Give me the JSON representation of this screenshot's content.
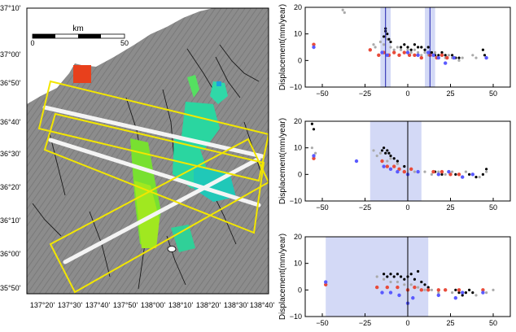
{
  "map": {
    "lat_labels": [
      "37°10'",
      "37°00'",
      "36°50'",
      "36°40'",
      "36°30'",
      "36°20'",
      "36°10'",
      "36°00'",
      "35°50'"
    ],
    "lon_labels": [
      "137°20'",
      "137°30'",
      "137°40'",
      "137°50'",
      "138°00'",
      "138°10'",
      "138°20'",
      "138°30'",
      "138°40'"
    ],
    "scale": {
      "unit": "km",
      "min": "0",
      "max": "50"
    },
    "colors": {
      "frame": "#f2e600",
      "terrain": "#8a8a8a",
      "profile": "#f4f4f4",
      "red_patch": "#e8401c"
    }
  },
  "chart_data": [
    {
      "type": "scatter",
      "title": "",
      "xlabel": "",
      "ylabel": "Displacement(mm/year)",
      "xlim": [
        -60,
        60
      ],
      "ylim": [
        -10,
        20
      ],
      "xticks": [
        -50,
        -25,
        0,
        25,
        50
      ],
      "yticks": [
        -10,
        0,
        10,
        20
      ],
      "x_tick_labels": [
        "−50",
        "−25",
        "0",
        "25",
        "50"
      ],
      "y_tick_labels": [
        "−10",
        "0",
        "10",
        "20"
      ],
      "shaded_intervals": [
        [
          -16,
          -10
        ],
        [
          10,
          16
        ]
      ],
      "vertical_lines": [
        -13,
        13
      ],
      "series": [
        {
          "color": "#aaaaaa",
          "points": [
            [
              -38,
              19
            ],
            [
              -37,
              18
            ],
            [
              -20,
              6
            ],
            [
              -19,
              5
            ],
            [
              -16,
              7
            ],
            [
              -14,
              6
            ],
            [
              -13,
              9
            ],
            [
              -12,
              8
            ],
            [
              -10,
              5
            ],
            [
              -8,
              4
            ],
            [
              -6,
              5
            ],
            [
              -4,
              4
            ],
            [
              -2,
              3
            ],
            [
              0,
              4
            ],
            [
              2,
              3
            ],
            [
              4,
              4
            ],
            [
              6,
              3
            ],
            [
              8,
              2
            ],
            [
              10,
              3
            ],
            [
              12,
              2
            ],
            [
              14,
              2
            ],
            [
              16,
              3
            ],
            [
              18,
              1
            ],
            [
              20,
              2
            ],
            [
              22,
              1
            ],
            [
              24,
              2
            ],
            [
              26,
              1
            ],
            [
              28,
              1
            ],
            [
              30,
              0
            ],
            [
              32,
              1
            ],
            [
              38,
              2
            ],
            [
              40,
              1
            ]
          ]
        },
        {
          "color": "#000000",
          "points": [
            [
              -14,
              9
            ],
            [
              -13,
              11
            ],
            [
              -12,
              10
            ],
            [
              -13,
              12
            ],
            [
              -11,
              8
            ],
            [
              -10,
              7
            ],
            [
              -4,
              5
            ],
            [
              -2,
              6
            ],
            [
              0,
              5
            ],
            [
              2,
              4
            ],
            [
              4,
              6
            ],
            [
              6,
              5
            ],
            [
              8,
              5
            ],
            [
              10,
              4
            ],
            [
              12,
              5
            ],
            [
              14,
              3
            ],
            [
              16,
              2
            ],
            [
              18,
              2
            ],
            [
              20,
              3
            ],
            [
              22,
              2
            ],
            [
              26,
              2
            ],
            [
              28,
              1
            ],
            [
              30,
              1
            ],
            [
              44,
              4
            ],
            [
              45,
              2
            ]
          ]
        },
        {
          "color": "#e84b3a",
          "points": [
            [
              -55,
              6
            ],
            [
              -22,
              4
            ],
            [
              -17,
              2
            ],
            [
              -14,
              3
            ],
            [
              -11,
              2
            ],
            [
              -8,
              3
            ],
            [
              -5,
              2
            ],
            [
              -2,
              3
            ],
            [
              1,
              2
            ],
            [
              4,
              2
            ],
            [
              8,
              1
            ],
            [
              13,
              2
            ],
            [
              17,
              1
            ],
            [
              20,
              2
            ],
            [
              23,
              1
            ]
          ]
        },
        {
          "color": "#5a5aff",
          "points": [
            [
              -55,
              5
            ],
            [
              -15,
              3
            ],
            [
              -12,
              2
            ],
            [
              0,
              3
            ],
            [
              6,
              2
            ],
            [
              12,
              3
            ],
            [
              15,
              2
            ],
            [
              18,
              1
            ],
            [
              22,
              -1
            ],
            [
              27,
              1
            ],
            [
              46,
              1
            ]
          ]
        }
      ]
    },
    {
      "type": "scatter",
      "title": "",
      "xlabel": "",
      "ylabel": "Displacement(mm/year)",
      "xlim": [
        -60,
        60
      ],
      "ylim": [
        -10,
        20
      ],
      "xticks": [
        -50,
        -25,
        0,
        25,
        50
      ],
      "yticks": [
        -10,
        0,
        10,
        20
      ],
      "x_tick_labels": [
        "−50",
        "−25",
        "0",
        "25",
        "50"
      ],
      "y_tick_labels": [
        "−10",
        "0",
        "10",
        "20"
      ],
      "shaded_intervals": [
        [
          -22,
          8
        ]
      ],
      "vertical_lines": [
        0
      ],
      "series": [
        {
          "color": "#aaaaaa",
          "points": [
            [
              -56,
              10
            ],
            [
              -54,
              8
            ],
            [
              -20,
              9
            ],
            [
              -18,
              7
            ],
            [
              -16,
              8
            ],
            [
              -12,
              5
            ],
            [
              -10,
              6
            ],
            [
              -6,
              4
            ],
            [
              -2,
              3
            ],
            [
              2,
              2
            ],
            [
              4,
              1
            ],
            [
              10,
              1
            ],
            [
              14,
              0
            ],
            [
              18,
              1
            ],
            [
              22,
              0
            ],
            [
              26,
              1
            ],
            [
              30,
              0
            ],
            [
              34,
              1
            ],
            [
              38,
              0
            ],
            [
              42,
              -1
            ],
            [
              46,
              1
            ]
          ]
        },
        {
          "color": "#000000",
          "points": [
            [
              -56,
              19
            ],
            [
              -55,
              17
            ],
            [
              -15,
              9
            ],
            [
              -14,
              10
            ],
            [
              -13,
              8
            ],
            [
              -12,
              9
            ],
            [
              -11,
              8
            ],
            [
              -10,
              7
            ],
            [
              -8,
              6
            ],
            [
              -6,
              5
            ],
            [
              -2,
              3
            ],
            [
              2,
              2
            ],
            [
              16,
              1
            ],
            [
              20,
              0
            ],
            [
              24,
              1
            ],
            [
              28,
              0
            ],
            [
              32,
              -1
            ],
            [
              36,
              0
            ],
            [
              40,
              -1
            ],
            [
              44,
              0
            ],
            [
              46,
              2
            ]
          ]
        },
        {
          "color": "#e84b3a",
          "points": [
            [
              -55,
              6
            ],
            [
              -15,
              5
            ],
            [
              -12,
              3
            ],
            [
              -8,
              3
            ],
            [
              -5,
              2
            ],
            [
              -2,
              1
            ],
            [
              2,
              2
            ],
            [
              15,
              1
            ],
            [
              20,
              1
            ],
            [
              25,
              0
            ],
            [
              30,
              0
            ]
          ]
        },
        {
          "color": "#5a5aff",
          "points": [
            [
              -55,
              7
            ],
            [
              -30,
              5
            ],
            [
              -14,
              3
            ],
            [
              -10,
              2
            ],
            [
              -6,
              1
            ],
            [
              0,
              0
            ],
            [
              6,
              1
            ],
            [
              18,
              0
            ],
            [
              24,
              1
            ],
            [
              32,
              -1
            ],
            [
              38,
              0
            ]
          ]
        }
      ]
    },
    {
      "type": "scatter",
      "title": "",
      "xlabel": "",
      "ylabel": "Displacement(mm/year)",
      "xlim": [
        -60,
        60
      ],
      "ylim": [
        -10,
        20
      ],
      "xticks": [
        -50,
        -25,
        0,
        25,
        50
      ],
      "yticks": [
        -10,
        0,
        10,
        20
      ],
      "x_tick_labels": [
        "−50",
        "−25",
        "0",
        "25",
        "50"
      ],
      "y_tick_labels": [
        "−10",
        "0",
        "10",
        "20"
      ],
      "shaded_intervals": [
        [
          -48,
          12
        ]
      ],
      "vertical_lines": [
        0
      ],
      "series": [
        {
          "color": "#aaaaaa",
          "points": [
            [
              -18,
              5
            ],
            [
              -14,
              4
            ],
            [
              -10,
              3
            ],
            [
              -6,
              3
            ],
            [
              -2,
              2
            ],
            [
              2,
              2
            ],
            [
              6,
              1
            ],
            [
              10,
              0
            ],
            [
              14,
              0
            ],
            [
              18,
              -1
            ],
            [
              22,
              0
            ],
            [
              26,
              -1
            ],
            [
              30,
              0
            ],
            [
              34,
              -1
            ],
            [
              40,
              -2
            ],
            [
              46,
              -1
            ],
            [
              50,
              0
            ]
          ]
        },
        {
          "color": "#000000",
          "points": [
            [
              -14,
              6
            ],
            [
              -12,
              5
            ],
            [
              -10,
              6
            ],
            [
              -8,
              5
            ],
            [
              -6,
              6
            ],
            [
              -4,
              5
            ],
            [
              -2,
              4
            ],
            [
              0,
              5
            ],
            [
              2,
              6
            ],
            [
              4,
              4
            ],
            [
              6,
              7
            ],
            [
              8,
              3
            ],
            [
              10,
              2
            ],
            [
              12,
              1
            ],
            [
              28,
              0
            ],
            [
              30,
              -1
            ],
            [
              32,
              -2
            ],
            [
              34,
              -1
            ],
            [
              36,
              0
            ],
            [
              38,
              -1
            ]
          ]
        },
        {
          "color": "#e84b3a",
          "points": [
            [
              -48,
              2
            ],
            [
              -18,
              1
            ],
            [
              -12,
              1
            ],
            [
              -6,
              1
            ],
            [
              0,
              0
            ],
            [
              4,
              1
            ],
            [
              8,
              0
            ],
            [
              12,
              0
            ],
            [
              18,
              0
            ],
            [
              22,
              0
            ],
            [
              30,
              0
            ],
            [
              44,
              0
            ]
          ]
        },
        {
          "color": "#5a5aff",
          "points": [
            [
              -48,
              3
            ],
            [
              -15,
              -1
            ],
            [
              -10,
              -1
            ],
            [
              -5,
              -2
            ],
            [
              0,
              -5
            ],
            [
              3,
              -3
            ],
            [
              18,
              -2
            ],
            [
              28,
              -3
            ],
            [
              32,
              -1
            ],
            [
              44,
              -1
            ]
          ]
        }
      ]
    }
  ]
}
